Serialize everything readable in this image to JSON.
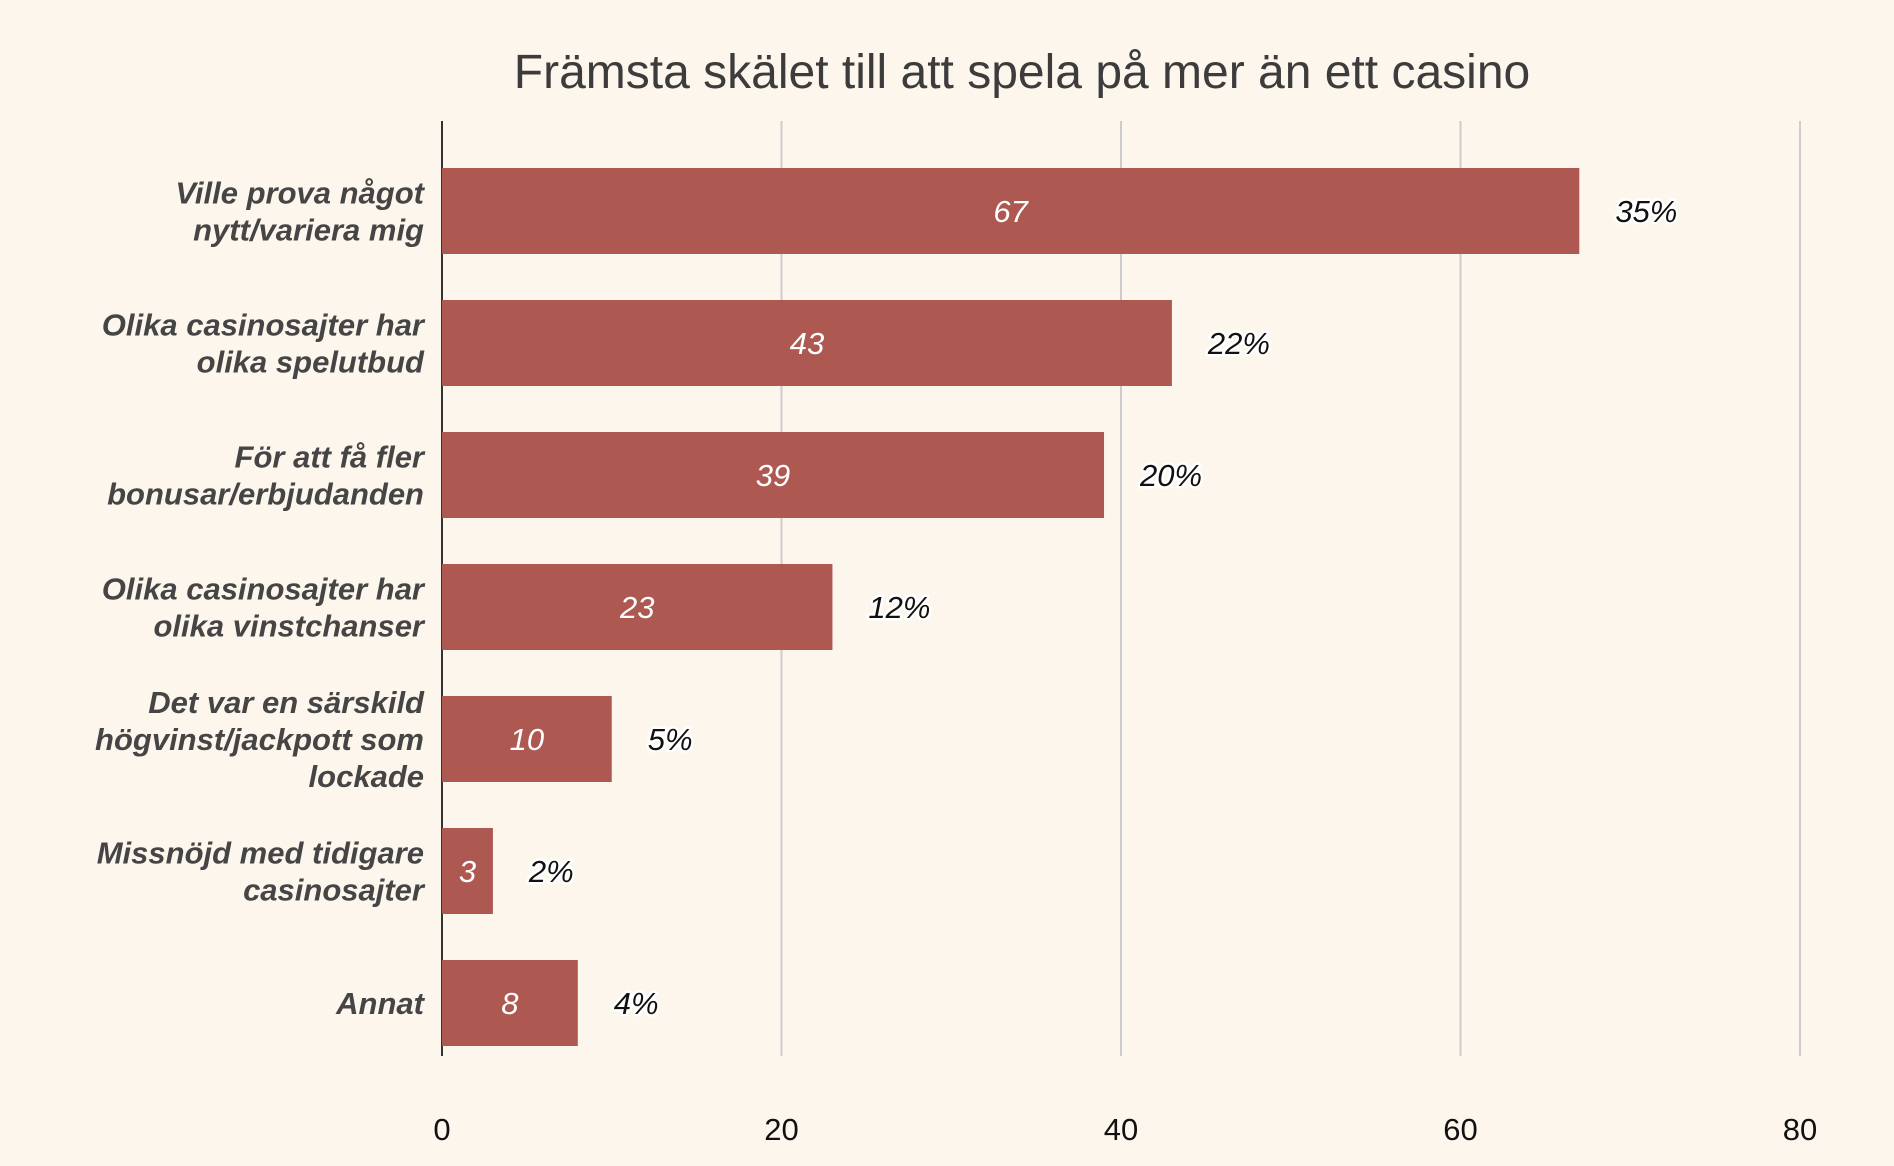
{
  "chart_data": {
    "type": "bar",
    "orientation": "horizontal",
    "title": "Främsta skälet till att spela på mer än ett casino",
    "categories": [
      [
        "Ville prova något",
        "nytt/variera mig"
      ],
      [
        "Olika casinosajter har",
        "olika spelutbud"
      ],
      [
        "För att få fler",
        "bonusar/erbjudanden"
      ],
      [
        "Olika casinosajter har",
        "olika vinstchanser"
      ],
      [
        "Det var en särskild",
        "högvinst/jackpott som",
        "lockade"
      ],
      [
        "Missnöjd med tidigare",
        "casinosajter"
      ],
      [
        "Annat"
      ]
    ],
    "values": [
      67,
      43,
      39,
      23,
      10,
      3,
      8
    ],
    "value_labels": [
      "67",
      "43",
      "39",
      "23",
      "10",
      "3",
      "8"
    ],
    "percent_labels": [
      "35%",
      "22%",
      "20%",
      "12%",
      "5%",
      "2%",
      "4%"
    ],
    "xlim": [
      0,
      80
    ],
    "xticks": [
      "0",
      "20",
      "40",
      "60",
      "80"
    ],
    "xlabel": "",
    "ylabel": "",
    "grid": true,
    "colors": {
      "bar": "#ae5852",
      "background": "#fdf6ed",
      "grid": "#cccccc",
      "axis": "#333333"
    }
  }
}
